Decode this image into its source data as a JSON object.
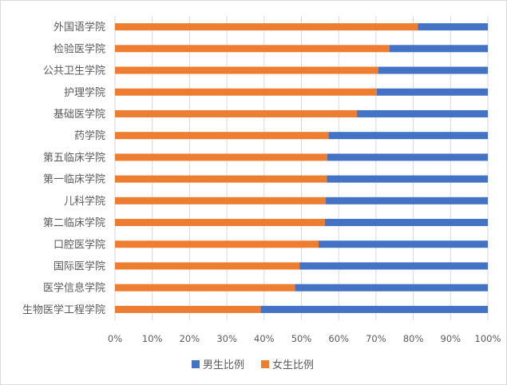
{
  "chart_data": {
    "type": "bar",
    "orientation": "horizontal",
    "stacked": "percent",
    "categories": [
      "外国语学院",
      "检验医学院",
      "公共卫生学院",
      "护理学院",
      "基础医学院",
      "药学院",
      "第五临床学院",
      "第一临床学院",
      "儿科学院",
      "第二临床学院",
      "口腔医学院",
      "国际医学院",
      "医学信息学院",
      "生物医学工程学院"
    ],
    "series": [
      {
        "name": "女生比例",
        "color": "#ED7D31",
        "values": [
          81.2,
          73.6,
          70.6,
          70.2,
          64.9,
          57.3,
          56.9,
          56.8,
          56.5,
          56.3,
          54.6,
          49.5,
          48.3,
          39.1
        ]
      },
      {
        "name": "男生比例",
        "color": "#4472C4",
        "values": [
          18.8,
          26.4,
          29.4,
          29.8,
          35.1,
          42.7,
          43.1,
          43.2,
          43.5,
          43.7,
          45.4,
          50.5,
          51.7,
          60.9
        ]
      }
    ],
    "x_ticks": [
      "0%",
      "10%",
      "20%",
      "30%",
      "40%",
      "50%",
      "60%",
      "70%",
      "80%",
      "90%",
      "100%"
    ],
    "xlim": [
      0,
      100
    ],
    "legend_order": [
      "男生比例",
      "女生比例"
    ],
    "legend_placement": "bottom",
    "grid": "vertical",
    "title": "",
    "xlabel": "",
    "ylabel": ""
  }
}
